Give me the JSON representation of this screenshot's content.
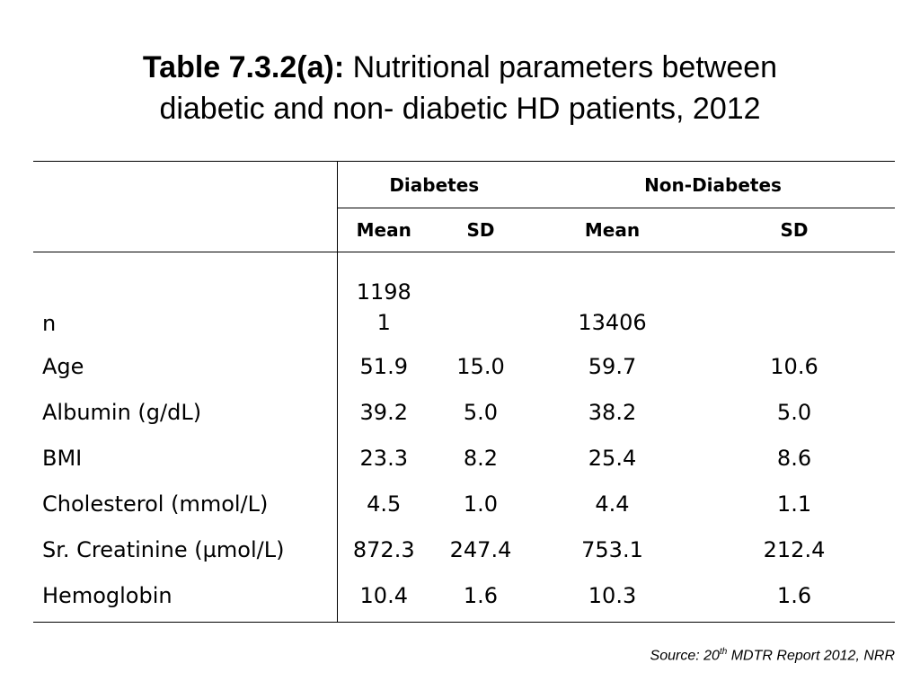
{
  "title": {
    "prefix": "Table 7.3.2(a):",
    "line1_rest": " Nutritional parameters between",
    "line2": "diabetic and non- diabetic HD patients, 2012"
  },
  "table": {
    "groups": [
      "Diabetes",
      "Non-Diabetes"
    ],
    "subheaders": [
      "Mean",
      "SD",
      "Mean",
      "SD"
    ],
    "n_row": {
      "label": "n",
      "diabetes_mean_line1": "1198",
      "diabetes_mean_line2": "1",
      "diabetes_sd": "",
      "nondiabetes_mean": "13406",
      "nondiabetes_sd": ""
    },
    "rows": [
      {
        "label": "Age",
        "d_mean": "51.9",
        "d_sd": "15.0",
        "n_mean": "59.7",
        "n_sd": "10.6"
      },
      {
        "label": "Albumin (g/dL)",
        "d_mean": "39.2",
        "d_sd": "5.0",
        "n_mean": "38.2",
        "n_sd": "5.0"
      },
      {
        "label": "BMI",
        "d_mean": "23.3",
        "d_sd": "8.2",
        "n_mean": "25.4",
        "n_sd": "8.6"
      },
      {
        "label": "Cholesterol (mmol/L)",
        "d_mean": "4.5",
        "d_sd": "1.0",
        "n_mean": "4.4",
        "n_sd": "1.1"
      },
      {
        "label": "Sr. Creatinine (µmol/L)",
        "d_mean": "872.3",
        "d_sd": "247.4",
        "n_mean": "753.1",
        "n_sd": "212.4"
      },
      {
        "label": "Hemoglobin",
        "d_mean": "10.4",
        "d_sd": "1.6",
        "n_mean": "10.3",
        "n_sd": "1.6"
      }
    ]
  },
  "source": {
    "before": "Source: 20",
    "sup": "th",
    "after": " MDTR Report 2012, NRR"
  }
}
